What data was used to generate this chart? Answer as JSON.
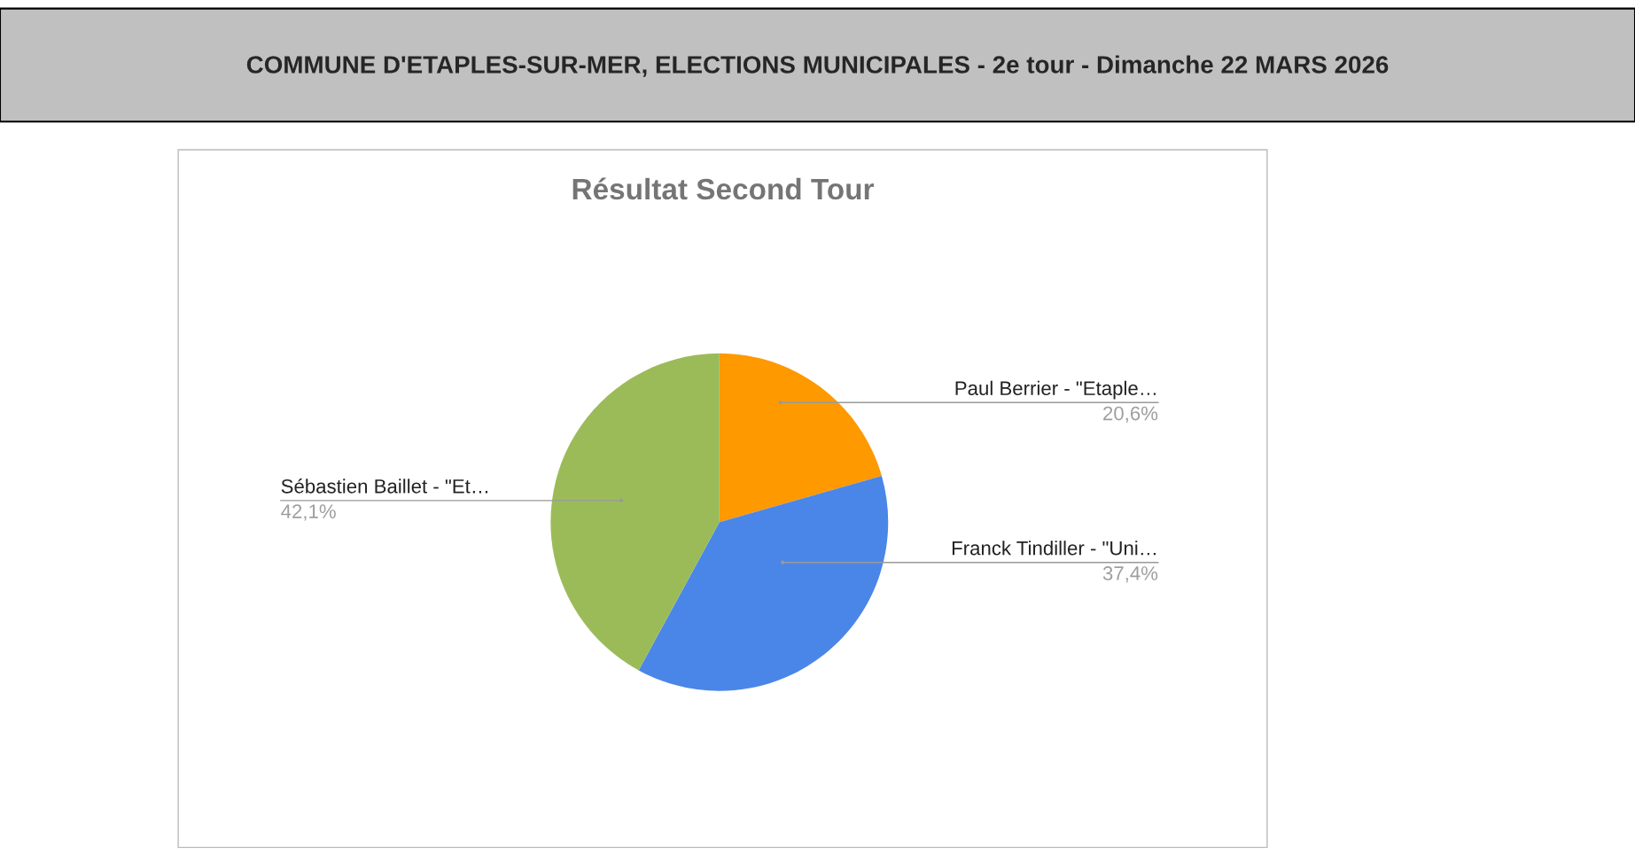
{
  "chart_data": {
    "type": "pie",
    "title": "COMMUNE D'ETAPLES-SUR-MER, ELECTIONS MUNICIPALES - 2e tour - Dimanche 22 MARS 2026",
    "subtitle": "Résultat Second Tour",
    "categories": [
      "Paul Berrier - \"Etaple…",
      "Franck Tindiller - \"Uni…",
      "Sébastien Baillet - \"Et…"
    ],
    "values": [
      20.6,
      37.4,
      42.1
    ],
    "value_labels": [
      "20,6%",
      "37,4%",
      "42,1%"
    ],
    "colors": [
      "#ff9900",
      "#4a86e8",
      "#9bbb59"
    ],
    "legend": false
  }
}
